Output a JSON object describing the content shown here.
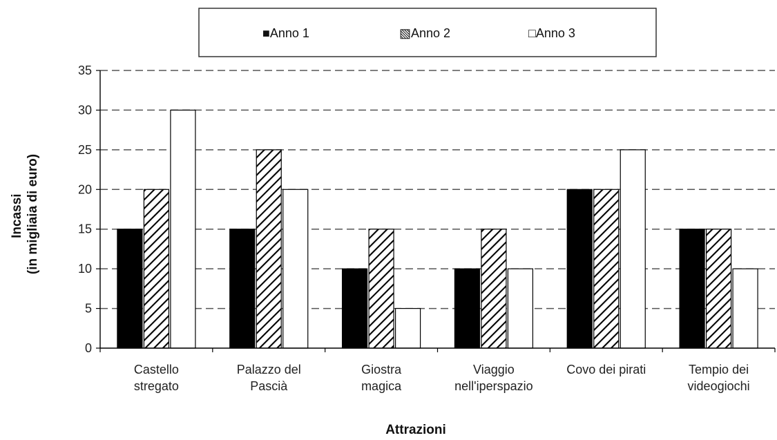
{
  "chart_data": {
    "type": "bar",
    "categories": [
      [
        "Castello",
        "stregato"
      ],
      [
        "Palazzo del",
        "Pascià"
      ],
      [
        "Giostra",
        "magica"
      ],
      [
        "Viaggio",
        "nell'iperspazio"
      ],
      [
        "Covo dei pirati"
      ],
      [
        "Tempio dei",
        "videogiochi"
      ]
    ],
    "series": [
      {
        "name": "Anno 1",
        "values": [
          15,
          15,
          10,
          10,
          20,
          15
        ],
        "fill": "solid"
      },
      {
        "name": "Anno 2",
        "values": [
          20,
          25,
          15,
          15,
          20,
          15
        ],
        "fill": "hatched"
      },
      {
        "name": "Anno 3",
        "values": [
          30,
          20,
          5,
          10,
          25,
          10
        ],
        "fill": "white"
      }
    ],
    "legend_symbols": [
      "■",
      "▧",
      "□"
    ],
    "xlabel": "Attrazioni",
    "ylabel": [
      "Incassi",
      "(in migliaia di euro)"
    ],
    "ylim": [
      0,
      35
    ],
    "yticks": [
      0,
      5,
      10,
      15,
      20,
      25,
      30,
      35
    ],
    "grid": "dashed-horizontal",
    "legend_position": "top"
  },
  "colors": {
    "bar_solid": "#000000",
    "bar_white": "#ffffff",
    "stroke": "#000000",
    "grid": "#555555"
  }
}
